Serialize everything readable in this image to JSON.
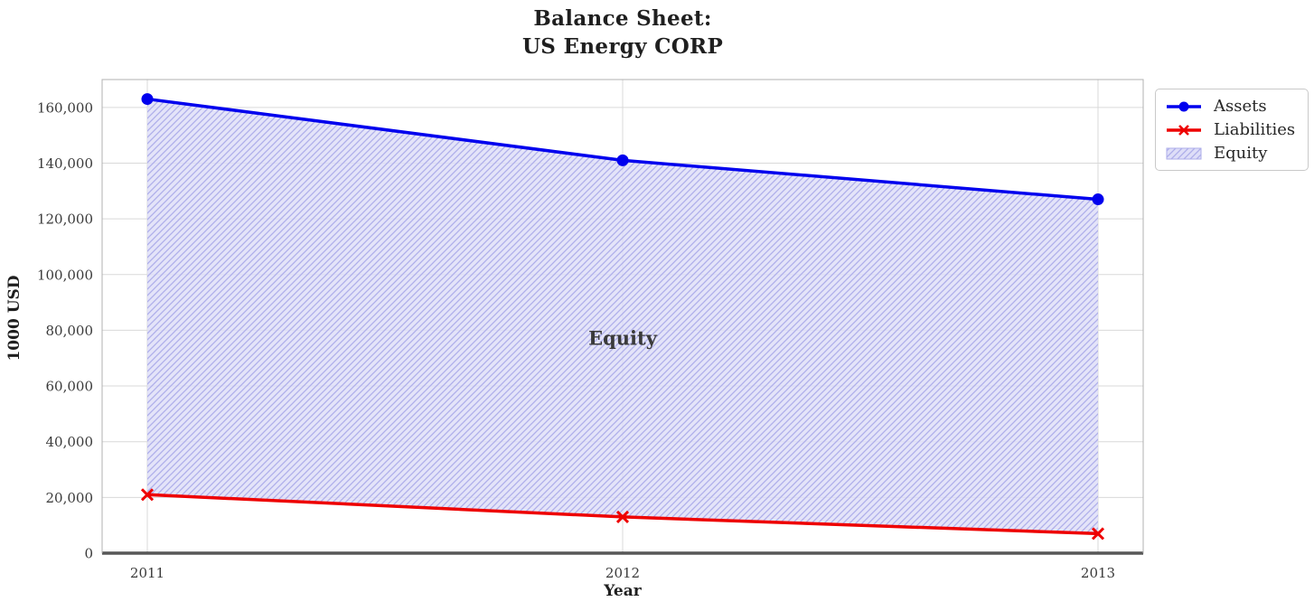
{
  "chart_data": {
    "type": "line",
    "title_lines": [
      "Balance Sheet:",
      "US Energy CORP"
    ],
    "x": [
      "2011",
      "2012",
      "2013"
    ],
    "series": [
      {
        "name": "Assets",
        "values": [
          163000,
          141000,
          127000
        ],
        "color": "#0000ee",
        "marker": "o",
        "linewidth": 3.5
      },
      {
        "name": "Liabilities",
        "values": [
          21000,
          13000,
          7000
        ],
        "color": "#ee0000",
        "marker": "x",
        "linewidth": 3.5
      }
    ],
    "fill_between": {
      "label": "Equity",
      "upper": "Assets",
      "lower": "Liabilities",
      "facecolor": "#dedef8",
      "hatch": "//",
      "hatch_color": "#aeaeea"
    },
    "annotation": {
      "text": "Equity",
      "x": "2012",
      "y": 77000,
      "color": "#0000ee"
    },
    "xlabel": "Year",
    "ylabel": "1000 USD",
    "ylim": [
      0,
      170000
    ],
    "yticks": [
      {
        "value": 0,
        "label": "0"
      },
      {
        "value": 20000,
        "label": "20,000"
      },
      {
        "value": 40000,
        "label": "40,000"
      },
      {
        "value": 60000,
        "label": "60,000"
      },
      {
        "value": 80000,
        "label": "80,000"
      },
      {
        "value": 100000,
        "label": "100,000"
      },
      {
        "value": 120000,
        "label": "120,000"
      },
      {
        "value": 140000,
        "label": "140,000"
      },
      {
        "value": 160000,
        "label": "160,000"
      }
    ],
    "grid": true,
    "grid_color": "#d9d9d9",
    "spine_color": "#b0b0b0",
    "zero_line": {
      "y": 0,
      "color": "#000000",
      "linewidth": 3
    },
    "legend_position": "upper right outside"
  }
}
